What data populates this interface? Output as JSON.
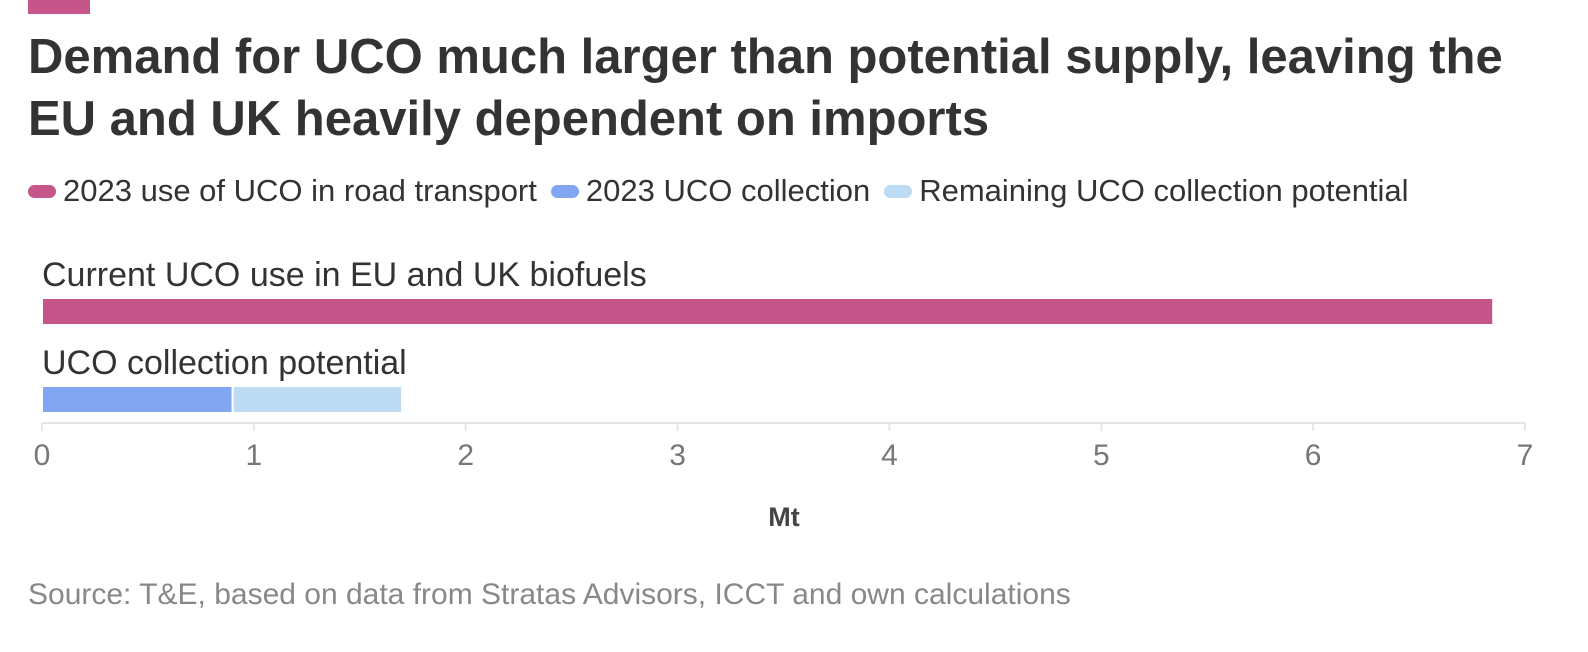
{
  "colors": {
    "accent": "#c6558a",
    "road": "#c6558a",
    "collection": "#82a6f2",
    "remaining": "#bddcf4"
  },
  "title": "Demand for UCO much larger than potential supply, leaving the EU and UK heavily dependent on imports",
  "source": "Source: T&E, based on data from Stratas Advisors, ICCT and own calculations",
  "chart_data": {
    "type": "bar",
    "orientation": "horizontal",
    "stacked": true,
    "categories": [
      "Current UCO use in EU and UK biofuels",
      "UCO collection potential"
    ],
    "series": [
      {
        "name": "2023 use of UCO in road transport",
        "color": "#c6558a",
        "values": [
          6.85,
          0
        ]
      },
      {
        "name": "2023 UCO collection",
        "color": "#82a6f2",
        "values": [
          0,
          0.9
        ]
      },
      {
        "name": "Remaining UCO collection potential",
        "color": "#bddcf4",
        "values": [
          0,
          0.8
        ]
      }
    ],
    "xlabel": "Mt",
    "xlim": [
      0,
      7
    ],
    "xticks": [
      "0",
      "1",
      "2",
      "3",
      "4",
      "5",
      "6",
      "7"
    ],
    "grid": false,
    "legend": "top-left"
  }
}
